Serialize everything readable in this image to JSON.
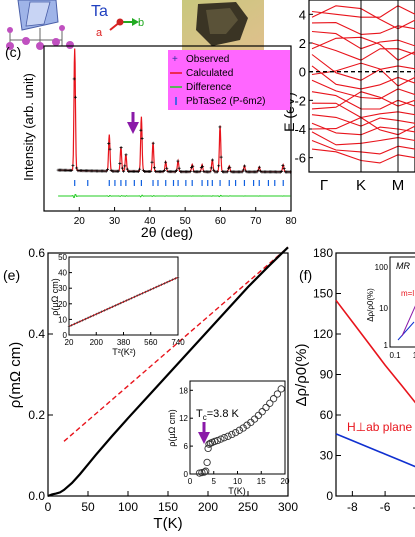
{
  "panels": {
    "a_label": "Ta",
    "a_axis_b": "b",
    "a_axis_a": "a",
    "c_label": "(c)",
    "e_label": "(e)",
    "f_label": "(f)"
  },
  "colors": {
    "observed": "#000000",
    "calculated": "#e8141c",
    "difference": "#22cc22",
    "bragg": "#1060e0",
    "legend_bg": "#ff66ff",
    "fit": "#e8141c",
    "band": "#e8141c",
    "mr_blue": "#1030d0",
    "arrow": "#8a1aa8"
  },
  "chart_data": [
    {
      "id": "xrd",
      "type": "line",
      "xlabel": "2θ (deg)",
      "ylabel": "Intensity (arb. unit)",
      "xlim": [
        10,
        80
      ],
      "xticks": [
        "20",
        "30",
        "40",
        "50",
        "60",
        "70",
        "80"
      ],
      "legend": [
        "Observed",
        "Calculated",
        "Difference",
        "PbTaSe2 (P-6m2)"
      ],
      "legend_position": "top-right",
      "peaks": [
        [
          18.7,
          1.0
        ],
        [
          28.5,
          0.3
        ],
        [
          31.8,
          0.2
        ],
        [
          33.2,
          0.14
        ],
        [
          37.6,
          0.45
        ],
        [
          40.9,
          0.24
        ],
        [
          44.5,
          0.08
        ],
        [
          48.0,
          0.09
        ],
        [
          52.0,
          0.06
        ],
        [
          54.8,
          0.06
        ],
        [
          57.7,
          0.1
        ],
        [
          59.9,
          0.38
        ],
        [
          62.5,
          0.05
        ],
        [
          66.8,
          0.05
        ],
        [
          71.0,
          0.04
        ],
        [
          77.8,
          0.06
        ]
      ],
      "bragg_positions": [
        18.7,
        22.4,
        28.5,
        30.1,
        31.8,
        33.2,
        35.6,
        37.6,
        40.9,
        42.3,
        44.5,
        46.7,
        48.0,
        50.2,
        52.0,
        54.8,
        56.4,
        57.7,
        59.9,
        62.5,
        64.3,
        66.8,
        69.4,
        71.0,
        73.6,
        75.4,
        77.8
      ]
    },
    {
      "id": "bands",
      "type": "line",
      "ylabel": "E (eV)",
      "ylim": [
        -7,
        5
      ],
      "yticks": [
        "-6",
        "-4",
        "-2",
        "0",
        "2",
        "4"
      ],
      "xtick_labels": [
        "Γ",
        "K",
        "M"
      ]
    },
    {
      "id": "resistivity",
      "type": "line",
      "xlabel": "T(K)",
      "ylabel": "ρ(mΩ cm)",
      "xlim": [
        0,
        300
      ],
      "ylim": [
        0,
        0.6
      ],
      "xticks": [
        "0",
        "50",
        "100",
        "150",
        "200",
        "250",
        "300"
      ],
      "yticks": [
        "0.0",
        "0.2",
        "0.4",
        "0.6"
      ],
      "x": [
        0,
        5,
        10,
        15,
        20,
        30,
        40,
        50,
        60,
        80,
        100,
        125,
        150,
        175,
        200,
        225,
        250,
        275,
        300
      ],
      "rho": [
        0.0,
        0.004,
        0.006,
        0.009,
        0.015,
        0.032,
        0.054,
        0.078,
        0.102,
        0.148,
        0.192,
        0.246,
        0.3,
        0.354,
        0.408,
        0.462,
        0.516,
        0.566,
        0.614
      ],
      "fit_x": [
        20,
        300
      ],
      "fit_y": [
        0.135,
        0.614
      ]
    },
    {
      "id": "inset_T2",
      "type": "line",
      "xlabel": "T²(K²)",
      "ylabel": "ρ(μΩ cm)",
      "xlim": [
        20,
        740
      ],
      "ylim": [
        0,
        50
      ],
      "xticks": [
        "20",
        "200",
        "380",
        "560",
        "740"
      ],
      "yticks": [
        "0",
        "10",
        "20",
        "30",
        "40",
        "50"
      ],
      "x": [
        20,
        740
      ],
      "y": [
        5.5,
        37
      ]
    },
    {
      "id": "inset_Tc",
      "type": "scatter",
      "xlabel": "T(K)",
      "ylabel": "ρ(μΩ cm)",
      "xlim": [
        0,
        20
      ],
      "ylim": [
        0,
        20
      ],
      "xticks": [
        "0",
        "5",
        "10",
        "15",
        "20"
      ],
      "yticks": [
        "0",
        "6",
        "12",
        "18"
      ],
      "annotation": "T",
      "annotation_sub": "c",
      "annotation_value": "=3.8 K",
      "x": [
        2,
        2.5,
        3,
        3.3,
        3.6,
        3.8,
        4.0,
        4.3,
        4.7,
        5.2,
        5.8,
        6.5,
        7.2,
        8,
        8.8,
        9.6,
        10.4,
        11.2,
        12,
        12.8,
        13.6,
        14.4,
        15.2,
        16,
        16.8,
        17.6,
        18.4,
        19.2
      ],
      "y": [
        0.2,
        0.3,
        0.4,
        0.6,
        2.5,
        5.5,
        6.4,
        6.6,
        6.8,
        7.0,
        7.2,
        7.5,
        7.8,
        8.1,
        8.5,
        8.9,
        9.4,
        9.9,
        10.5,
        11.1,
        11.8,
        12.6,
        13.4,
        14.3,
        15.2,
        16.2,
        17.2,
        18.3
      ]
    },
    {
      "id": "magnetoresistance",
      "type": "line",
      "ylabel": "Δρ/ρ0(%)",
      "ylim": [
        0,
        180
      ],
      "yticks": [
        "0",
        "30",
        "60",
        "90",
        "120",
        "150",
        "180"
      ],
      "xticks": [
        "-8",
        "-6",
        "-4"
      ],
      "xlim": [
        -9,
        -3.5
      ],
      "label_blue": "H⊥ab plane",
      "series": [
        {
          "x": [
            -9,
            -8,
            -7,
            -6,
            -5,
            -4,
            -3.5
          ],
          "y": [
            145,
            129,
            113,
            97,
            82,
            67,
            60
          ]
        },
        {
          "x": [
            -9,
            -8,
            -7,
            -6,
            -5,
            -4,
            -3.5
          ],
          "y": [
            46,
            41,
            36,
            31,
            26,
            21,
            19
          ]
        }
      ],
      "inset_title": "MR",
      "inset_ylabel": "Δρ/ρ0(%)",
      "inset_yticks": [
        "100",
        "10",
        "1"
      ],
      "inset_xticks": [
        "0.1",
        "1"
      ],
      "inset_label": "m=l"
    }
  ]
}
